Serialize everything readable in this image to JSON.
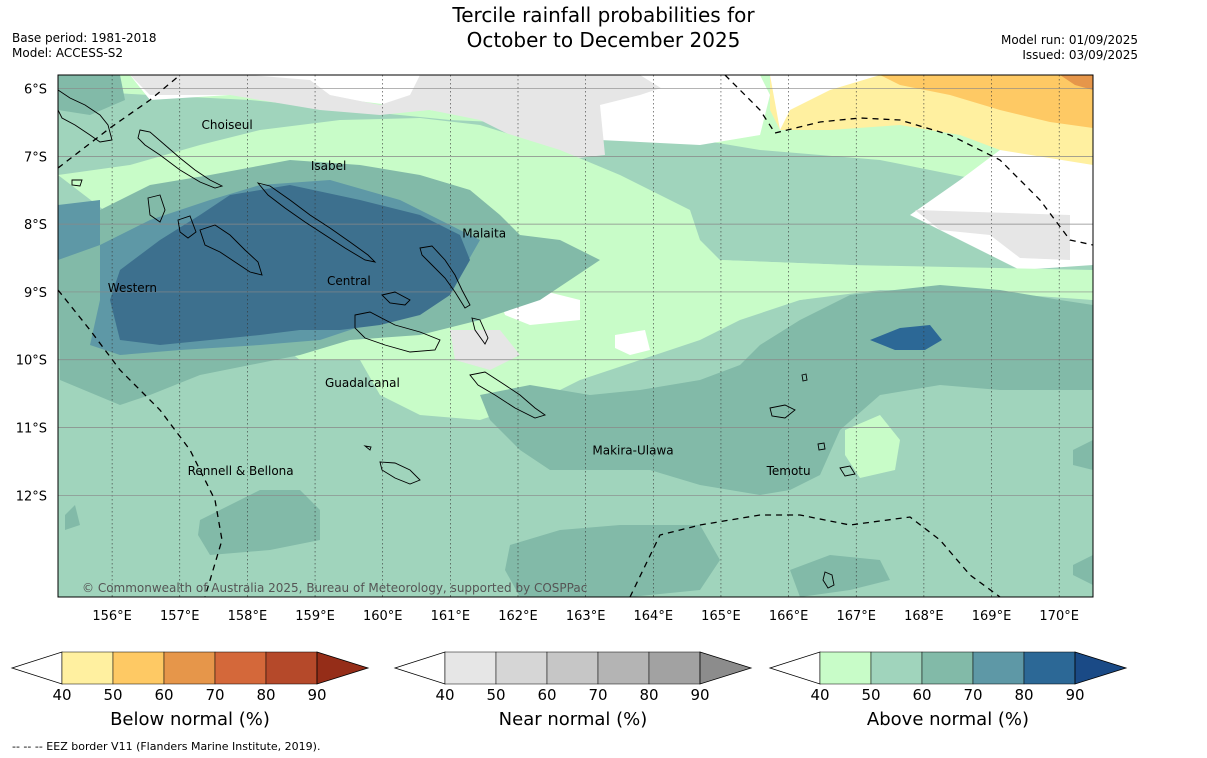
{
  "title_line1": "Tercile rainfall probabilities for",
  "title_line2": "October to December 2025",
  "base_period": "Base period: 1981-2018",
  "model": "Model: ACCESS-S2",
  "model_run": "Model run: 01/09/2025",
  "issued": "Issued: 03/09/2025",
  "copyright": "© Commonwealth of Australia 2025, Bureau of Meteorology, supported by COSPPac",
  "eez_note": "--  --  -- EEZ border V11 (Flanders Marine Institute, 2019).",
  "map": {
    "lon_range": [
      155.2,
      170.5
    ],
    "lat_range": [
      -13.5,
      -5.8
    ],
    "lon_ticks": [
      "156°E",
      "157°E",
      "158°E",
      "159°E",
      "160°E",
      "161°E",
      "162°E",
      "163°E",
      "164°E",
      "165°E",
      "166°E",
      "167°E",
      "168°E",
      "169°E",
      "170°E"
    ],
    "lat_ticks": [
      "6°S",
      "7°S",
      "8°S",
      "9°S",
      "10°S",
      "11°S",
      "12°S"
    ],
    "region_labels": [
      {
        "name": "Choiseul",
        "lon": 157.7,
        "lat": -6.6
      },
      {
        "name": "Isabel",
        "lon": 159.2,
        "lat": -7.2
      },
      {
        "name": "Malaita",
        "lon": 161.5,
        "lat": -8.2
      },
      {
        "name": "Western",
        "lon": 156.3,
        "lat": -9.0
      },
      {
        "name": "Central",
        "lon": 159.5,
        "lat": -8.9
      },
      {
        "name": "Guadalcanal",
        "lon": 159.7,
        "lat": -10.4
      },
      {
        "name": "Makira-Ulawa",
        "lon": 163.7,
        "lat": -11.4
      },
      {
        "name": "Rennell & Bellona",
        "lon": 157.9,
        "lat": -11.7
      },
      {
        "name": "Temotu",
        "lon": 166.0,
        "lat": -11.7
      }
    ]
  },
  "colorbars": [
    {
      "label": "Below normal (%)",
      "ticks": [
        "40",
        "50",
        "60",
        "70",
        "80",
        "90"
      ],
      "colors": [
        "#fff0a0",
        "#fec964",
        "#e6964a",
        "#d4683a",
        "#b5492a",
        "#952d18"
      ]
    },
    {
      "label": "Near normal (%)",
      "ticks": [
        "40",
        "50",
        "60",
        "70",
        "80",
        "90"
      ],
      "colors": [
        "#e6e6e6",
        "#d6d6d6",
        "#c6c6c6",
        "#b4b4b4",
        "#a2a2a2",
        "#8c8c8c"
      ]
    },
    {
      "label": "Above normal (%)",
      "ticks": [
        "40",
        "50",
        "60",
        "70",
        "80",
        "90"
      ],
      "colors": [
        "#c8fcc8",
        "#a0d4bc",
        "#82baa8",
        "#5e98a6",
        "#2c6896",
        "#1a4a86"
      ]
    }
  ]
}
